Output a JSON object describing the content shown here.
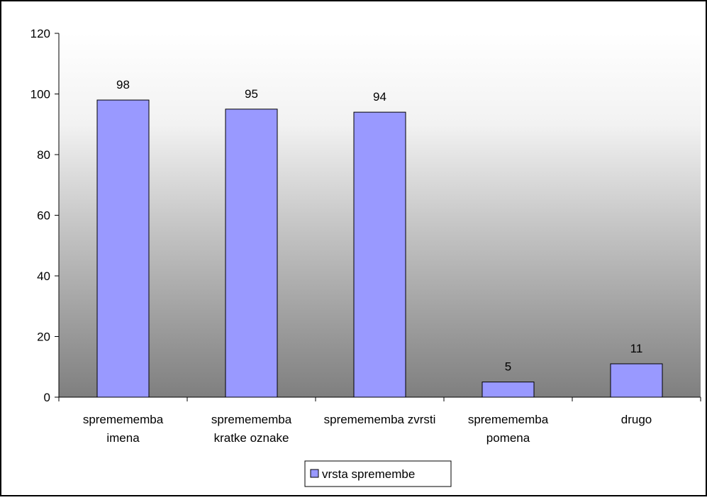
{
  "chart_data": {
    "type": "bar",
    "categories": [
      [
        "spremememba",
        "imena"
      ],
      [
        "spremememba",
        "kratke oznake"
      ],
      [
        "spremememba zvrsti"
      ],
      [
        "spremememba",
        "pomena"
      ],
      [
        "drugo"
      ]
    ],
    "series": [
      {
        "name": "vrsta spremembe",
        "values": [
          98,
          95,
          94,
          5,
          11
        ],
        "color": "#9999ff"
      }
    ],
    "data_labels": [
      "98",
      "95",
      "94",
      "5",
      "11"
    ],
    "y_ticks": [
      "0",
      "20",
      "40",
      "60",
      "80",
      "100",
      "120"
    ],
    "ylim": [
      0,
      120
    ],
    "title": "",
    "xlabel": "",
    "ylabel": "",
    "grid": false,
    "legend_placement": "bottom-center",
    "plot_background": "gradient white-to-gray"
  }
}
